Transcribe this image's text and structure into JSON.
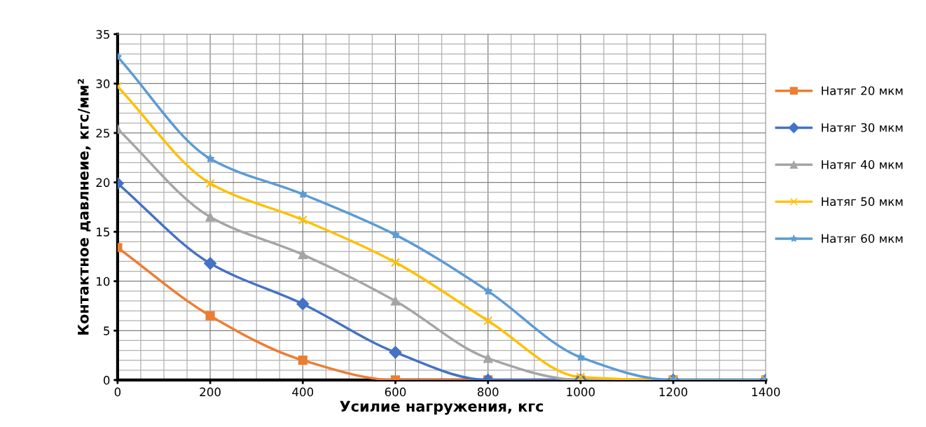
{
  "chart_data": {
    "type": "line",
    "xlabel": "Усилие нагружения, кгс",
    "ylabel": "Контактное давлнеие, кгс/мм²",
    "x": [
      0,
      200,
      400,
      600,
      800,
      1000,
      1200,
      1400
    ],
    "xlim": [
      0,
      1400
    ],
    "xticks": [
      0,
      200,
      400,
      600,
      800,
      1000,
      1200,
      1400
    ],
    "ylim": [
      0,
      35
    ],
    "yticks": [
      0,
      5,
      10,
      15,
      20,
      25,
      30,
      35
    ],
    "grid": true,
    "legend": "right",
    "line_style": "solid",
    "series": [
      {
        "name": "Натяг 20 мкм",
        "color": "#ed7d31",
        "marker": "square",
        "values": [
          13.4,
          6.5,
          2.0,
          0,
          0,
          0,
          0,
          0
        ]
      },
      {
        "name": "Натяг 30 мкм",
        "color": "#4472c4",
        "marker": "diamond",
        "values": [
          19.9,
          11.8,
          7.7,
          2.8,
          0,
          0,
          0,
          0
        ]
      },
      {
        "name": "Натяг 40 мкм",
        "color": "#a5a5a5",
        "marker": "triangle",
        "values": [
          25.4,
          16.5,
          12.7,
          8.0,
          2.2,
          0,
          0,
          0
        ]
      },
      {
        "name": "Натяг 50 мкм",
        "color": "#ffc000",
        "marker": "cross",
        "values": [
          29.7,
          19.9,
          16.2,
          11.9,
          6.0,
          0.3,
          0,
          0
        ]
      },
      {
        "name": "Натяг 60 мкм",
        "color": "#5b9bd5",
        "marker": "star",
        "values": [
          32.7,
          22.4,
          18.8,
          14.7,
          9.0,
          2.3,
          0,
          0
        ]
      }
    ]
  }
}
